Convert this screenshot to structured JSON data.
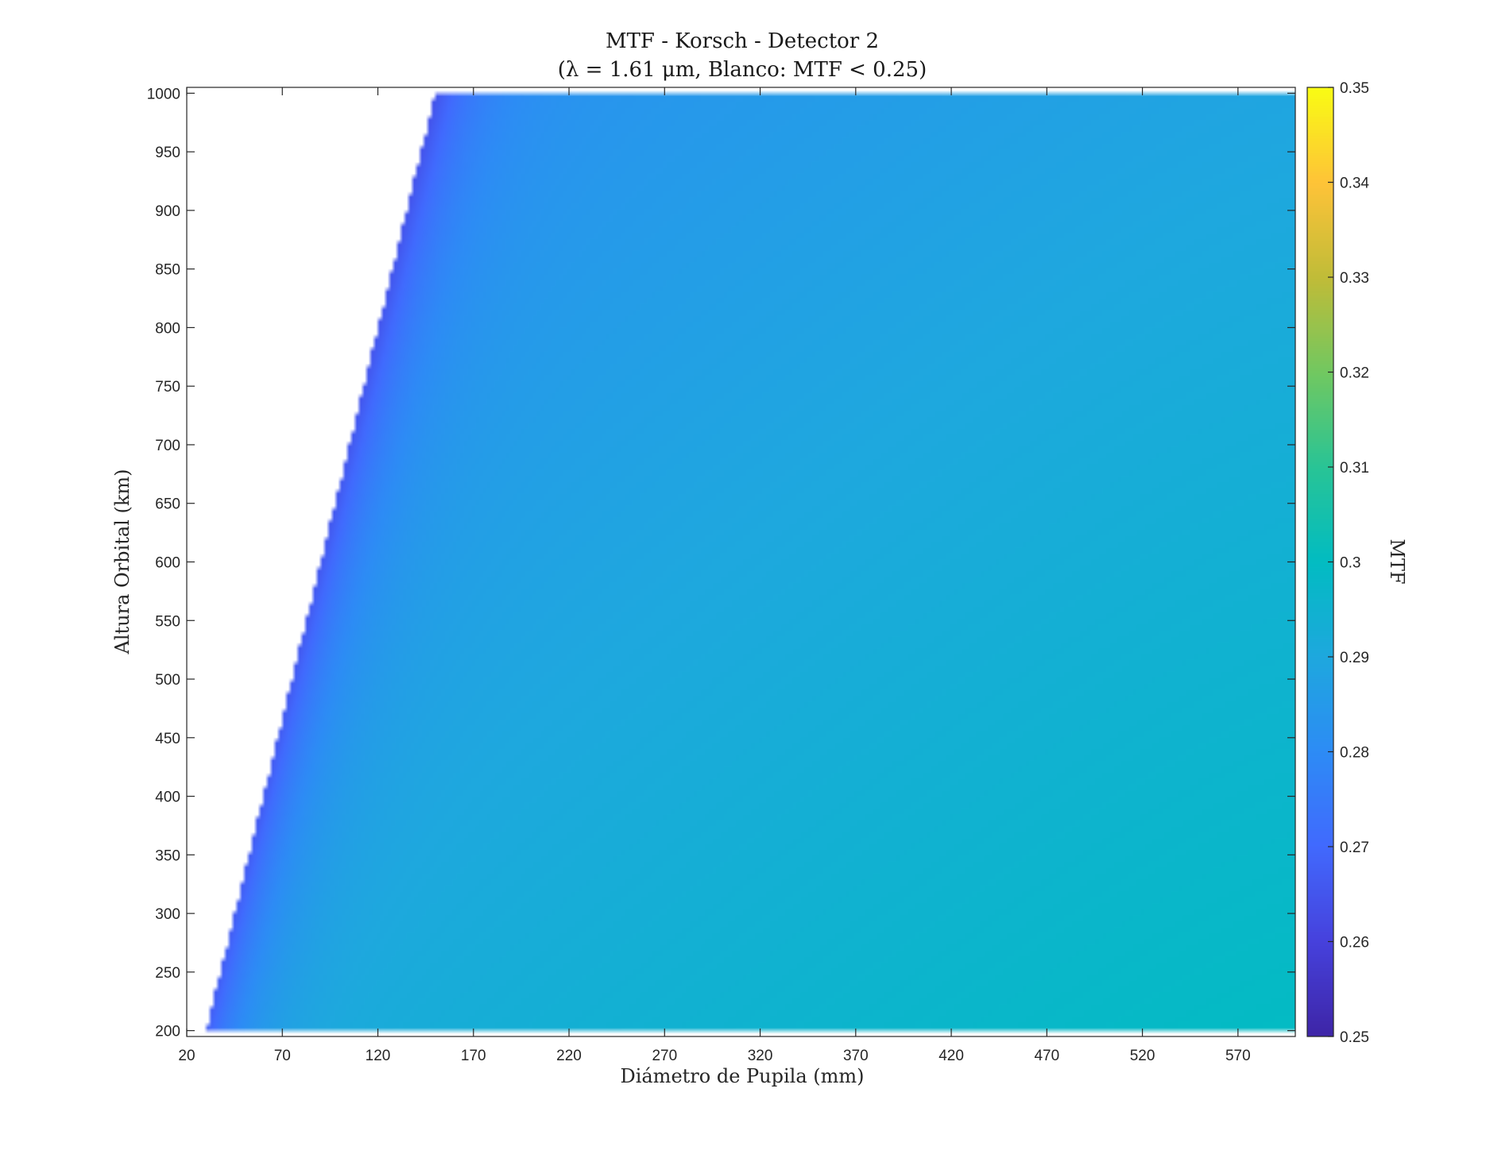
{
  "chart_data": {
    "type": "heatmap",
    "title": "MTF - Korsch - Detector 2",
    "subtitle": "(λ = 1.61 μm, Blanco: MTF < 0.25)",
    "xlabel": "Diámetro de Pupila (mm)",
    "ylabel": "Altura Orbital (km)",
    "xlim": [
      20,
      600
    ],
    "ylim": [
      195,
      1005
    ],
    "x_ticks": [
      "20",
      "70",
      "120",
      "170",
      "220",
      "270",
      "320",
      "370",
      "420",
      "470",
      "520",
      "570"
    ],
    "y_ticks": [
      "200",
      "250",
      "300",
      "350",
      "400",
      "450",
      "500",
      "550",
      "600",
      "650",
      "700",
      "750",
      "800",
      "850",
      "900",
      "950",
      "1000"
    ],
    "colorbar": {
      "label": "MTF",
      "range": [
        0.25,
        0.35
      ],
      "ticks": [
        "0.25",
        "0.26",
        "0.27",
        "0.28",
        "0.29",
        "0.3",
        "0.31",
        "0.32",
        "0.33",
        "0.34",
        "0.35"
      ],
      "colormap": "parula"
    },
    "masked_threshold": 0.25,
    "masked_color": "#ffffff",
    "cutoff_boundary": {
      "x": [
        30,
        150
      ],
      "y": [
        200,
        1000
      ]
    },
    "sample_values": [
      {
        "x": 200,
        "y": 1000,
        "mtf": 0.273
      },
      {
        "x": 220,
        "y": 600,
        "mtf": 0.281
      },
      {
        "x": 600,
        "y": 1000,
        "mtf": 0.289
      },
      {
        "x": 300,
        "y": 200,
        "mtf": 0.293
      },
      {
        "x": 600,
        "y": 200,
        "mtf": 0.297
      }
    ]
  }
}
